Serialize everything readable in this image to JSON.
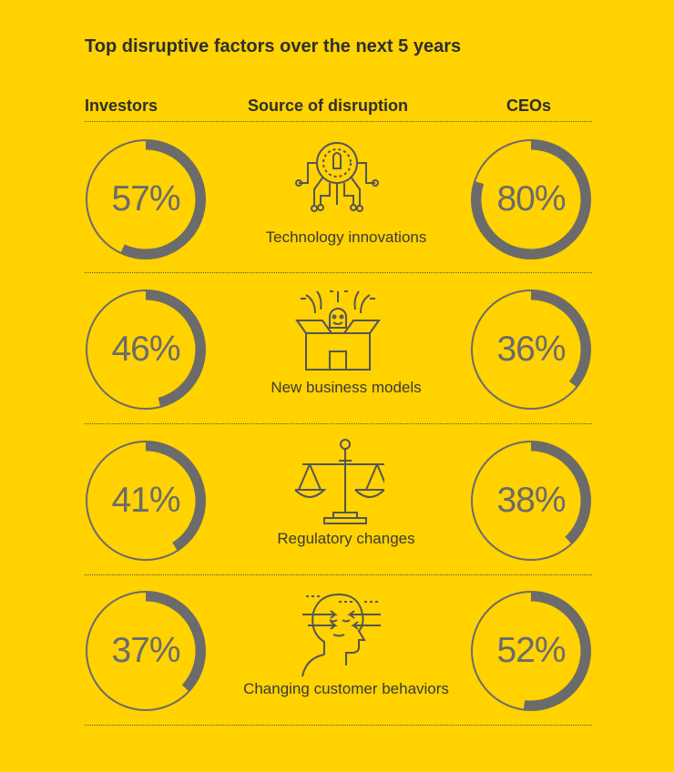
{
  "title": "Top disruptive factors over the next 5 years",
  "headers": {
    "investors": "Investors",
    "source": "Source of disruption",
    "ceos": "CEOs"
  },
  "colors": {
    "background": "#FFD200",
    "ring": "#6b6b6b",
    "text": "#3a3a3a"
  },
  "rows": [
    {
      "source": "Technology innovations",
      "icon": "lightbulb-circuit-icon",
      "investors": "57%",
      "ceos": "80%"
    },
    {
      "source": "New business models",
      "icon": "open-box-icon",
      "investors": "46%",
      "ceos": "36%"
    },
    {
      "source": "Regulatory changes",
      "icon": "balance-scale-icon",
      "investors": "41%",
      "ceos": "38%"
    },
    {
      "source": "Changing customer behaviors",
      "icon": "person-head-arrows-icon",
      "investors": "37%",
      "ceos": "52%"
    }
  ],
  "chart_data": {
    "type": "pie",
    "title": "Top disruptive factors over the next 5 years",
    "categories": [
      "Technology innovations",
      "New business models",
      "Regulatory changes",
      "Changing customer behaviors"
    ],
    "series": [
      {
        "name": "Investors",
        "values": [
          57,
          46,
          41,
          37
        ]
      },
      {
        "name": "CEOs",
        "values": [
          80,
          36,
          38,
          52
        ]
      }
    ],
    "unit": "%"
  }
}
